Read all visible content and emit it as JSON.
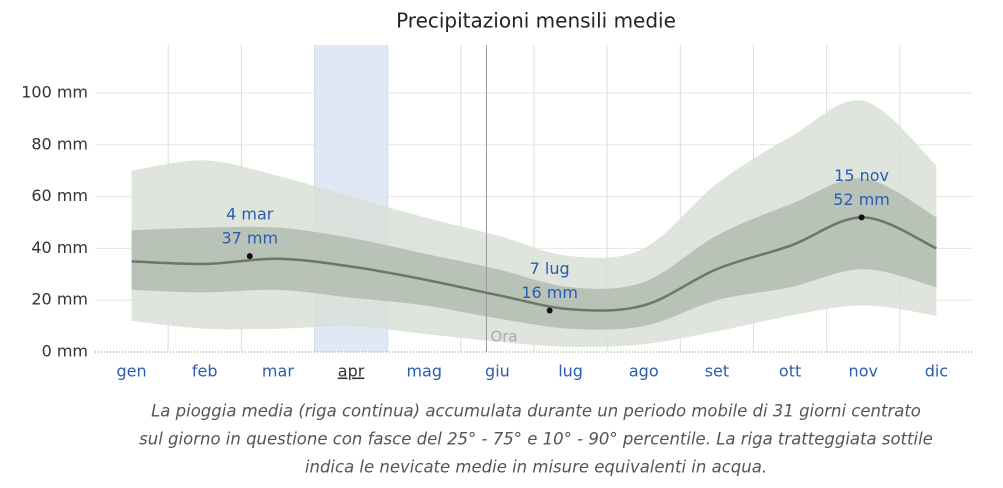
{
  "chart_data": {
    "type": "band-line",
    "title": "Precipitazioni mensili medie",
    "categories": [
      "gen",
      "feb",
      "mar",
      "apr",
      "mag",
      "giu",
      "lug",
      "ago",
      "set",
      "ott",
      "nov",
      "dic"
    ],
    "highlight_category": 3,
    "now_label": "Ora",
    "series": [
      {
        "color": "#6b7767",
        "values": [
          35,
          34,
          36,
          33,
          28,
          22,
          16.5,
          18,
          32,
          41,
          52,
          40
        ]
      }
    ],
    "bands": [
      {
        "color": "#d9dfd7",
        "upper": [
          70,
          74,
          68,
          60,
          52,
          45,
          37,
          40,
          65,
          83,
          97,
          72
        ],
        "lower": [
          12,
          9,
          9,
          10,
          7,
          4,
          2,
          3,
          8,
          14,
          18,
          14
        ]
      },
      {
        "color": "#b3bcb0",
        "upper": [
          47,
          48,
          48,
          44,
          38,
          32,
          25,
          27,
          45,
          57,
          67,
          52
        ],
        "lower": [
          24,
          23,
          24,
          21,
          18,
          13,
          9,
          10,
          20,
          25,
          32,
          25
        ]
      }
    ],
    "annotations": [
      {
        "label": "4 mar",
        "value": 37,
        "value_label": "37 mm"
      },
      {
        "label": "7 lug",
        "value": 16,
        "value_label": "16 mm"
      },
      {
        "label": "15 nov",
        "value": 52,
        "value_label": "52 mm"
      }
    ],
    "ylim": [
      0,
      100
    ],
    "yticks": [
      {
        "value": 0,
        "label": "0 mm"
      },
      {
        "value": 20,
        "label": "20 mm"
      },
      {
        "value": 40,
        "label": "40 mm"
      },
      {
        "value": 60,
        "label": "60 mm"
      },
      {
        "value": 80,
        "label": "80 mm"
      },
      {
        "value": 100,
        "label": "100 mm"
      }
    ],
    "grid": true,
    "caption": [
      "La pioggia media (riga continua) accumulata durante un periodo mobile di 31 giorni centrato",
      "sul giorno in questione con fasce del 25° - 75° e 10° - 90° percentile. La riga tratteggiata sottile",
      "indica le nevicate medie in misure equivalenti in acqua."
    ]
  }
}
